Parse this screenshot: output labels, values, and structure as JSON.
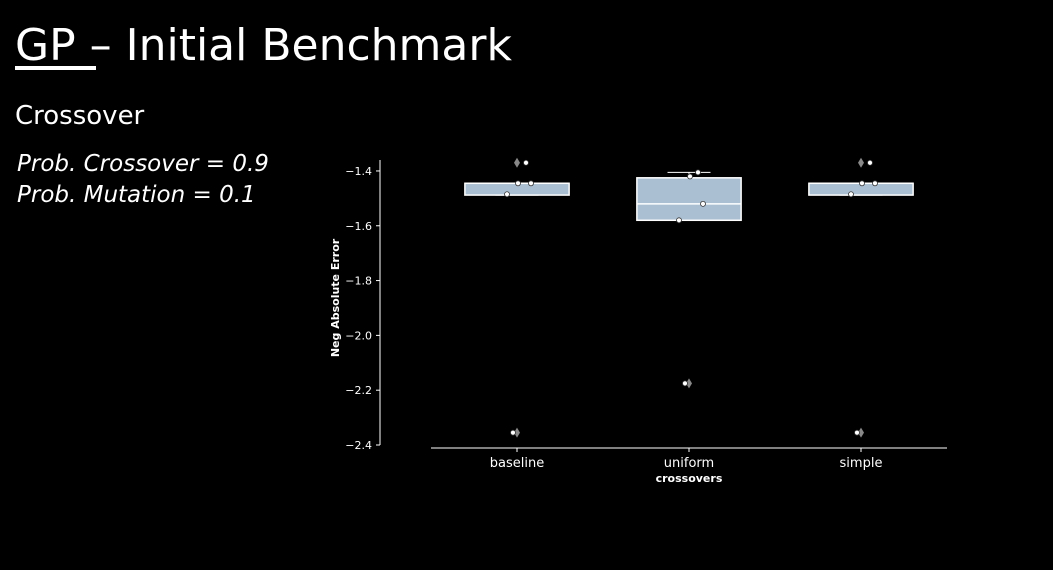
{
  "slide": {
    "title": "GP – Initial Benchmark",
    "subtitle": "Crossover",
    "params": [
      "Prob. Crossover = 0.9",
      "Prob. Mutation = 0.1"
    ]
  },
  "chart_data": {
    "type": "box",
    "xlabel": "crossovers",
    "ylabel": "Neg Absolute Error",
    "categories": [
      "baseline",
      "uniform",
      "simple"
    ],
    "box_color": "#aabfd2",
    "boxes": [
      {
        "whislo": -1.488,
        "q1": -1.488,
        "median": -1.445,
        "q3": -1.445,
        "whishi": -1.445,
        "fliers": [
          -1.37,
          -2.355
        ],
        "points": [
          -1.37,
          -1.445,
          -1.445,
          -1.485,
          -2.355
        ]
      },
      {
        "whislo": -1.58,
        "q1": -1.58,
        "median": -1.52,
        "q3": -1.425,
        "whishi": -1.405,
        "fliers": [
          -2.175
        ],
        "points": [
          -1.405,
          -1.42,
          -1.52,
          -1.58,
          -2.175
        ]
      },
      {
        "whislo": -1.488,
        "q1": -1.488,
        "median": -1.445,
        "q3": -1.445,
        "whishi": -1.445,
        "fliers": [
          -1.37,
          -2.355
        ],
        "points": [
          -1.37,
          -1.445,
          -1.445,
          -1.485,
          -2.355
        ]
      }
    ],
    "ylim": [
      -2.4,
      -1.36
    ],
    "yticks": [
      {
        "value": -2.4,
        "label": "−2.4"
      },
      {
        "value": -2.2,
        "label": "−2.2"
      },
      {
        "value": -2.0,
        "label": "−2.0"
      },
      {
        "value": -1.8,
        "label": "−1.8"
      },
      {
        "value": -1.6,
        "label": "−1.6"
      },
      {
        "value": -1.4,
        "label": "−1.4"
      }
    ]
  }
}
